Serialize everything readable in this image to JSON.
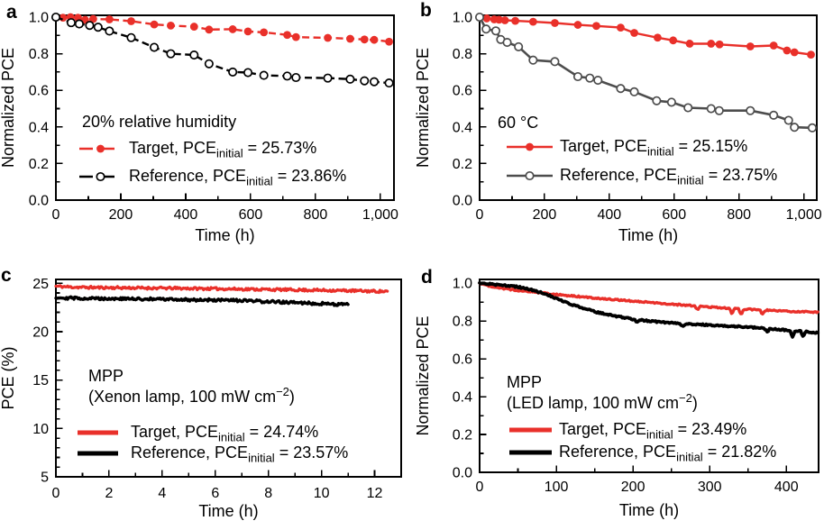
{
  "figure": {
    "colors": {
      "target_red": "#e9302a",
      "reference_black": "#000000",
      "reference_grey": "#4d4d4d",
      "background": "#ffffff"
    }
  },
  "chart_data": [
    {
      "panel_label": "a",
      "type": "line",
      "xlabel": "Time (h)",
      "ylabel": "Normalized PCE",
      "xlim": [
        0,
        1042
      ],
      "ylim": [
        0,
        1.01
      ],
      "xticks": [
        0,
        200,
        400,
        600,
        800,
        1000
      ],
      "xtick_labels": [
        "0",
        "200",
        "400",
        "600",
        "800",
        "1,000"
      ],
      "yticks": [
        0,
        0.2,
        0.4,
        0.6,
        0.8,
        1.0
      ],
      "ytick_labels": [
        "0.0",
        "0.2",
        "0.4",
        "0.6",
        "0.8",
        "1.0"
      ],
      "x_minor_step": 100,
      "y_minor_step": 0.1,
      "annotation_lines": [
        [
          {
            "t": "20% relative humidity"
          }
        ]
      ],
      "series": [
        {
          "name": "target",
          "label_parts": [
            {
              "t": "Target, PCE"
            },
            {
              "t": "initial",
              "style": "sub"
            },
            {
              "t": " = 25.73%"
            }
          ],
          "color": "#e9302a",
          "line_style": "dashed",
          "line_width": 2.4,
          "marker": "filled-circle",
          "x": [
            0,
            22,
            45,
            68,
            90,
            115,
            165,
            232,
            303,
            354,
            426,
            472,
            545,
            592,
            641,
            713,
            740,
            838,
            907,
            951,
            981,
            1027
          ],
          "y": [
            1.0,
            0.997,
            1.0,
            0.997,
            0.985,
            0.99,
            0.988,
            0.978,
            0.96,
            0.954,
            0.948,
            0.932,
            0.934,
            0.922,
            0.917,
            0.903,
            0.891,
            0.887,
            0.882,
            0.878,
            0.876,
            0.866
          ]
        },
        {
          "name": "reference",
          "label_parts": [
            {
              "t": "Reference, PCE"
            },
            {
              "t": "initial",
              "style": "sub"
            },
            {
              "t": " = 23.86%"
            }
          ],
          "color": "#000000",
          "line_style": "dashed",
          "line_width": 2.4,
          "marker": "open-circle",
          "x": [
            0,
            47,
            72,
            104,
            130,
            165,
            232,
            303,
            354,
            426,
            472,
            545,
            592,
            641,
            713,
            740,
            838,
            907,
            951,
            981,
            1027
          ],
          "y": [
            1.0,
            0.97,
            0.963,
            0.955,
            0.945,
            0.924,
            0.888,
            0.835,
            0.8,
            0.793,
            0.745,
            0.7,
            0.697,
            0.682,
            0.678,
            0.67,
            0.667,
            0.661,
            0.652,
            0.647,
            0.64
          ]
        }
      ]
    },
    {
      "panel_label": "b",
      "type": "line",
      "xlabel": "Time (h)",
      "ylabel": "Normalized PCE",
      "xlim": [
        0,
        1040
      ],
      "ylim": [
        0,
        1.01
      ],
      "xticks": [
        0,
        200,
        400,
        600,
        800,
        1000
      ],
      "xtick_labels": [
        "0",
        "200",
        "400",
        "600",
        "800",
        "1,000"
      ],
      "yticks": [
        0,
        0.2,
        0.4,
        0.6,
        0.8,
        1.0
      ],
      "ytick_labels": [
        "0.0",
        "0.2",
        "0.4",
        "0.6",
        "0.8",
        "1.0"
      ],
      "x_minor_step": 100,
      "y_minor_step": 0.1,
      "annotation_lines": [
        [
          {
            "t": "60 °C"
          }
        ]
      ],
      "series": [
        {
          "name": "target",
          "label_parts": [
            {
              "t": "Target, PCE"
            },
            {
              "t": "initial",
              "style": "sub"
            },
            {
              "t": " = 25.15%"
            }
          ],
          "color": "#e9302a",
          "line_style": "solid",
          "line_width": 2.4,
          "marker": "filled-circle",
          "x": [
            0,
            22,
            45,
            60,
            78,
            110,
            165,
            232,
            303,
            360,
            435,
            477,
            549,
            597,
            648,
            714,
            740,
            835,
            907,
            948,
            971,
            1022
          ],
          "y": [
            1.0,
            0.993,
            0.988,
            0.986,
            0.983,
            0.98,
            0.975,
            0.968,
            0.958,
            0.952,
            0.943,
            0.914,
            0.888,
            0.873,
            0.855,
            0.855,
            0.851,
            0.84,
            0.845,
            0.818,
            0.808,
            0.795
          ]
        },
        {
          "name": "reference",
          "label_parts": [
            {
              "t": "Reference, PCE"
            },
            {
              "t": "initial",
              "style": "sub"
            },
            {
              "t": " = 23.75%"
            }
          ],
          "color": "#4d4d4d",
          "line_style": "solid",
          "line_width": 2.6,
          "marker": "open-circle",
          "x": [
            0,
            20,
            50,
            65,
            85,
            120,
            165,
            232,
            303,
            340,
            365,
            435,
            477,
            546,
            592,
            643,
            714,
            739,
            835,
            907,
            953,
            971,
            1026
          ],
          "y": [
            1.0,
            0.935,
            0.925,
            0.878,
            0.862,
            0.838,
            0.765,
            0.757,
            0.675,
            0.667,
            0.655,
            0.61,
            0.592,
            0.543,
            0.535,
            0.505,
            0.5,
            0.489,
            0.489,
            0.464,
            0.436,
            0.398,
            0.395
          ]
        }
      ]
    },
    {
      "panel_label": "c",
      "type": "line",
      "xlabel": "Time (h)",
      "ylabel": "PCE (%)",
      "xlim": [
        0,
        13
      ],
      "ylim": [
        5,
        25.4
      ],
      "xticks": [
        0,
        2,
        4,
        6,
        8,
        10,
        12
      ],
      "xtick_labels": [
        "0",
        "2",
        "4",
        "6",
        "8",
        "10",
        "12"
      ],
      "yticks": [
        5,
        10,
        15,
        20,
        25
      ],
      "ytick_labels": [
        "5",
        "10",
        "15",
        "20",
        "25"
      ],
      "x_minor_step": 1,
      "y_minor_step": 1,
      "annotation_lines": [
        [
          {
            "t": "MPP"
          }
        ],
        [
          {
            "t": "(Xenon lamp, 100 mW cm"
          },
          {
            "t": "−2",
            "style": "sup"
          },
          {
            "t": ")"
          }
        ]
      ],
      "series": [
        {
          "name": "target",
          "label_parts": [
            {
              "t": "Target, PCE"
            },
            {
              "t": "initial",
              "style": "sub"
            },
            {
              "t": " = 24.74%"
            }
          ],
          "color": "#e9302a",
          "line_style": "solid",
          "line_width": 3.2,
          "marker": "none",
          "noise": 0.13,
          "sample_step": 0.04,
          "seed": 11,
          "x": [
            0,
            0.5,
            1,
            2,
            3,
            4,
            5,
            6,
            7,
            8,
            9,
            10,
            11,
            12,
            12.5
          ],
          "y": [
            24.7,
            24.62,
            24.58,
            24.55,
            24.52,
            24.5,
            24.47,
            24.44,
            24.4,
            24.36,
            24.32,
            24.28,
            24.24,
            24.18,
            24.15
          ]
        },
        {
          "name": "reference",
          "label_parts": [
            {
              "t": "Reference, PCE"
            },
            {
              "t": "initial",
              "style": "sub"
            },
            {
              "t": " = 23.57%"
            }
          ],
          "color": "#000000",
          "line_style": "solid",
          "line_width": 3.4,
          "marker": "none",
          "noise": 0.14,
          "sample_step": 0.04,
          "seed": 29,
          "x": [
            0,
            0.5,
            1,
            2,
            3,
            4,
            5,
            6,
            7,
            8,
            9,
            10,
            10.5,
            11
          ],
          "y": [
            23.55,
            23.48,
            23.45,
            23.42,
            23.38,
            23.35,
            23.3,
            23.26,
            23.2,
            23.1,
            23.0,
            22.9,
            22.85,
            22.8
          ]
        }
      ]
    },
    {
      "panel_label": "d",
      "type": "line",
      "xlabel": "Time (h)",
      "ylabel": "Normalized PCE",
      "xlim": [
        0,
        442
      ],
      "ylim": [
        0,
        1.02
      ],
      "xticks": [
        0,
        100,
        200,
        300,
        400
      ],
      "xtick_labels": [
        "0",
        "100",
        "200",
        "300",
        "400"
      ],
      "yticks": [
        0,
        0.2,
        0.4,
        0.6,
        0.8,
        1.0
      ],
      "ytick_labels": [
        "0.0",
        "0.2",
        "0.4",
        "0.6",
        "0.8",
        "1.0"
      ],
      "x_minor_step": 50,
      "y_minor_step": 0.1,
      "annotation_lines": [
        [
          {
            "t": "MPP"
          }
        ],
        [
          {
            "t": "(LED lamp, 100 mW cm"
          },
          {
            "t": "−2",
            "style": "sup"
          },
          {
            "t": ")"
          }
        ]
      ],
      "series": [
        {
          "name": "target",
          "label_parts": [
            {
              "t": "Target, PCE"
            },
            {
              "t": "initial",
              "style": "sub"
            },
            {
              "t": " = 23.49%"
            }
          ],
          "color": "#e9302a",
          "line_style": "solid",
          "line_width": 3.4,
          "marker": "none",
          "noise": 0.0035,
          "sample_step": 1.5,
          "seed": 47,
          "dips": [
            {
              "x": 284,
              "d": 0.02
            },
            {
              "x": 329,
              "d": 0.028
            },
            {
              "x": 341,
              "d": 0.032
            },
            {
              "x": 369,
              "d": 0.024
            }
          ],
          "x": [
            0,
            10,
            25,
            50,
            75,
            100,
            150,
            200,
            250,
            300,
            350,
            400,
            442
          ],
          "y": [
            1.0,
            0.988,
            0.975,
            0.962,
            0.952,
            0.94,
            0.922,
            0.905,
            0.889,
            0.874,
            0.862,
            0.852,
            0.846
          ]
        },
        {
          "name": "reference",
          "label_parts": [
            {
              "t": "Reference, PCE"
            },
            {
              "t": "initial",
              "style": "sub"
            },
            {
              "t": " = 21.82%"
            }
          ],
          "color": "#000000",
          "line_style": "solid",
          "line_width": 3.8,
          "marker": "none",
          "noise": 0.004,
          "sample_step": 1.5,
          "seed": 83,
          "dips": [
            {
              "x": 205,
              "d": 0.015
            },
            {
              "x": 265,
              "d": 0.02
            },
            {
              "x": 375,
              "d": 0.018
            },
            {
              "x": 408,
              "d": 0.03
            },
            {
              "x": 422,
              "d": 0.025
            }
          ],
          "x": [
            0,
            10,
            20,
            30,
            40,
            50,
            60,
            70,
            80,
            90,
            100,
            110,
            120,
            130,
            140,
            150,
            160,
            170,
            180,
            190,
            200,
            220,
            240,
            260,
            280,
            300,
            320,
            340,
            360,
            380,
            400,
            420,
            442
          ],
          "y": [
            1.0,
            0.997,
            0.993,
            0.99,
            0.985,
            0.98,
            0.972,
            0.962,
            0.95,
            0.937,
            0.918,
            0.902,
            0.888,
            0.874,
            0.862,
            0.85,
            0.84,
            0.832,
            0.824,
            0.817,
            0.81,
            0.8,
            0.794,
            0.788,
            0.783,
            0.778,
            0.774,
            0.77,
            0.765,
            0.758,
            0.752,
            0.745,
            0.738
          ]
        }
      ]
    }
  ]
}
